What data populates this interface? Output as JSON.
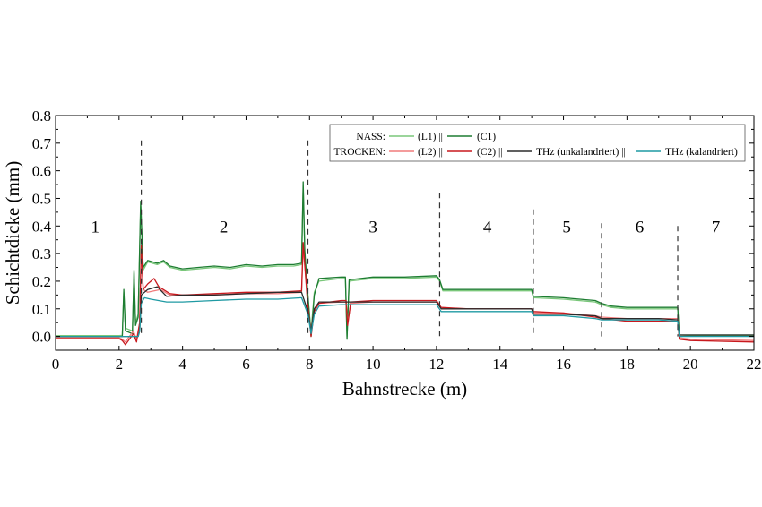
{
  "chart_data": {
    "type": "line",
    "xlabel": "Bahnstrecke (m)",
    "ylabel": "Schichtdicke (mm)",
    "xlim": [
      0,
      22
    ],
    "ylim": [
      -0.05,
      0.8
    ],
    "xticks": [
      0,
      2,
      4,
      6,
      8,
      10,
      12,
      14,
      16,
      18,
      20,
      22
    ],
    "yticks": [
      0.0,
      0.1,
      0.2,
      0.3,
      0.4,
      0.5,
      0.6,
      0.7,
      0.8
    ],
    "ytick_labels": [
      "0.0",
      "0.1",
      "0.2",
      "0.3",
      "0.4",
      "0.5",
      "0.6",
      "0.7",
      "0.8"
    ],
    "grid": false,
    "legend": {
      "placement": "top-right",
      "rows": [
        {
          "prefix": "NASS:",
          "entries": [
            {
              "series": "L1",
              "label": "(L1) ||"
            },
            {
              "series": "C1",
              "label": "(C1)"
            }
          ]
        },
        {
          "prefix": "TROCKEN:",
          "entries": [
            {
              "series": "L2",
              "label": "(L2) ||"
            },
            {
              "series": "C2",
              "label": "(C2) ||"
            },
            {
              "series": "THz_u",
              "label": "THz (unkalandriert) ||"
            },
            {
              "series": "THz_k",
              "label": "THz (kalandriert)"
            }
          ]
        }
      ]
    },
    "boundaries": [
      {
        "x": 2.7,
        "top": 0.71
      },
      {
        "x": 7.95,
        "top": 0.71
      },
      {
        "x": 12.1,
        "top": 0.52
      },
      {
        "x": 15.05,
        "top": 0.46
      },
      {
        "x": 17.2,
        "top": 0.41
      },
      {
        "x": 19.6,
        "top": 0.4
      }
    ],
    "regions": [
      {
        "label": "1",
        "x": 1.25,
        "y": 0.4
      },
      {
        "label": "2",
        "x": 5.3,
        "y": 0.4
      },
      {
        "label": "3",
        "x": 10.0,
        "y": 0.4
      },
      {
        "label": "4",
        "x": 13.6,
        "y": 0.4
      },
      {
        "label": "5",
        "x": 16.1,
        "y": 0.4
      },
      {
        "label": "6",
        "x": 18.4,
        "y": 0.4
      },
      {
        "label": "7",
        "x": 20.8,
        "y": 0.4
      }
    ],
    "series": [
      {
        "key": "L1",
        "color": "#7ac77a",
        "points": [
          [
            0,
            0.003
          ],
          [
            2.0,
            0.003
          ],
          [
            2.1,
            0.004
          ],
          [
            2.15,
            0.16
          ],
          [
            2.2,
            0.03
          ],
          [
            2.42,
            0.02
          ],
          [
            2.47,
            0.23
          ],
          [
            2.52,
            0.05
          ],
          [
            2.6,
            0.08
          ],
          [
            2.68,
            0.47
          ],
          [
            2.76,
            0.24
          ],
          [
            2.9,
            0.27
          ],
          [
            3.2,
            0.26
          ],
          [
            3.4,
            0.27
          ],
          [
            3.6,
            0.25
          ],
          [
            4.0,
            0.24
          ],
          [
            4.5,
            0.245
          ],
          [
            5.0,
            0.25
          ],
          [
            5.5,
            0.245
          ],
          [
            6.0,
            0.255
          ],
          [
            6.5,
            0.25
          ],
          [
            7.0,
            0.255
          ],
          [
            7.5,
            0.255
          ],
          [
            7.75,
            0.26
          ],
          [
            7.8,
            0.54
          ],
          [
            7.85,
            0.3
          ],
          [
            7.95,
            0.14
          ],
          [
            8.05,
            0.02
          ],
          [
            8.15,
            0.16
          ],
          [
            8.3,
            0.2
          ],
          [
            9.0,
            0.21
          ],
          [
            9.13,
            0.21
          ],
          [
            9.18,
            0.0
          ],
          [
            9.25,
            0.2
          ],
          [
            10.0,
            0.21
          ],
          [
            11.0,
            0.21
          ],
          [
            12.0,
            0.215
          ],
          [
            12.1,
            0.2
          ],
          [
            12.2,
            0.165
          ],
          [
            13.0,
            0.165
          ],
          [
            14.0,
            0.165
          ],
          [
            15.0,
            0.165
          ],
          [
            15.05,
            0.14
          ],
          [
            16.0,
            0.135
          ],
          [
            17.0,
            0.125
          ],
          [
            17.2,
            0.115
          ],
          [
            17.5,
            0.105
          ],
          [
            18.0,
            0.1
          ],
          [
            19.0,
            0.1
          ],
          [
            19.6,
            0.1
          ],
          [
            19.65,
            0.0
          ],
          [
            20.0,
            0.002
          ],
          [
            22.0,
            0.003
          ]
        ]
      },
      {
        "key": "C1",
        "color": "#1e7d32",
        "points": [
          [
            0,
            0.0
          ],
          [
            2.0,
            0.0
          ],
          [
            2.1,
            0.0
          ],
          [
            2.15,
            0.17
          ],
          [
            2.2,
            0.02
          ],
          [
            2.42,
            0.01
          ],
          [
            2.47,
            0.24
          ],
          [
            2.52,
            0.04
          ],
          [
            2.6,
            0.07
          ],
          [
            2.68,
            0.49
          ],
          [
            2.76,
            0.25
          ],
          [
            2.9,
            0.275
          ],
          [
            3.2,
            0.265
          ],
          [
            3.4,
            0.275
          ],
          [
            3.6,
            0.255
          ],
          [
            4.0,
            0.245
          ],
          [
            4.5,
            0.25
          ],
          [
            5.0,
            0.255
          ],
          [
            5.5,
            0.25
          ],
          [
            6.0,
            0.26
          ],
          [
            6.5,
            0.255
          ],
          [
            7.0,
            0.26
          ],
          [
            7.5,
            0.26
          ],
          [
            7.75,
            0.265
          ],
          [
            7.8,
            0.56
          ],
          [
            7.85,
            0.31
          ],
          [
            7.95,
            0.15
          ],
          [
            8.05,
            0.0
          ],
          [
            8.15,
            0.15
          ],
          [
            8.3,
            0.21
          ],
          [
            9.0,
            0.215
          ],
          [
            9.13,
            0.215
          ],
          [
            9.18,
            -0.01
          ],
          [
            9.25,
            0.205
          ],
          [
            10.0,
            0.215
          ],
          [
            11.0,
            0.215
          ],
          [
            12.0,
            0.22
          ],
          [
            12.1,
            0.205
          ],
          [
            12.2,
            0.17
          ],
          [
            13.0,
            0.17
          ],
          [
            14.0,
            0.17
          ],
          [
            15.0,
            0.17
          ],
          [
            15.05,
            0.145
          ],
          [
            16.0,
            0.14
          ],
          [
            17.0,
            0.13
          ],
          [
            17.2,
            0.12
          ],
          [
            17.5,
            0.11
          ],
          [
            18.0,
            0.105
          ],
          [
            19.0,
            0.105
          ],
          [
            19.6,
            0.105
          ],
          [
            19.65,
            0.005
          ],
          [
            20.0,
            0.005
          ],
          [
            22.0,
            0.005
          ]
        ]
      },
      {
        "key": "L2",
        "color": "#f07c7c",
        "points": [
          [
            0,
            -0.005
          ],
          [
            2.0,
            -0.005
          ],
          [
            2.1,
            -0.01
          ],
          [
            2.2,
            -0.02
          ],
          [
            2.45,
            0.02
          ],
          [
            2.55,
            -0.01
          ],
          [
            2.65,
            0.05
          ],
          [
            2.7,
            0.32
          ],
          [
            2.76,
            0.17
          ],
          [
            2.9,
            0.16
          ],
          [
            3.3,
            0.17
          ],
          [
            3.6,
            0.15
          ],
          [
            4.0,
            0.15
          ],
          [
            5.0,
            0.15
          ],
          [
            6.0,
            0.155
          ],
          [
            7.0,
            0.155
          ],
          [
            7.75,
            0.16
          ],
          [
            7.8,
            0.33
          ],
          [
            7.95,
            0.1
          ],
          [
            8.05,
            0.02
          ],
          [
            8.15,
            0.1
          ],
          [
            8.3,
            0.12
          ],
          [
            9.0,
            0.125
          ],
          [
            9.15,
            0.125
          ],
          [
            9.2,
            0.05
          ],
          [
            9.3,
            0.12
          ],
          [
            10.0,
            0.125
          ],
          [
            11.0,
            0.125
          ],
          [
            12.0,
            0.125
          ],
          [
            12.15,
            0.1
          ],
          [
            13.0,
            0.1
          ],
          [
            14.0,
            0.1
          ],
          [
            15.0,
            0.1
          ],
          [
            15.05,
            0.085
          ],
          [
            16.0,
            0.085
          ],
          [
            17.0,
            0.075
          ],
          [
            17.2,
            0.07
          ],
          [
            18.0,
            0.065
          ],
          [
            19.0,
            0.065
          ],
          [
            19.6,
            0.065
          ],
          [
            19.65,
            -0.005
          ],
          [
            20.0,
            -0.01
          ],
          [
            22.0,
            -0.015
          ]
        ]
      },
      {
        "key": "C2",
        "color": "#c8191e",
        "points": [
          [
            0,
            -0.008
          ],
          [
            2.0,
            -0.008
          ],
          [
            2.1,
            -0.015
          ],
          [
            2.2,
            -0.03
          ],
          [
            2.45,
            0.01
          ],
          [
            2.55,
            -0.02
          ],
          [
            2.65,
            0.05
          ],
          [
            2.7,
            0.33
          ],
          [
            2.76,
            0.17
          ],
          [
            2.9,
            0.19
          ],
          [
            3.1,
            0.21
          ],
          [
            3.25,
            0.18
          ],
          [
            3.6,
            0.155
          ],
          [
            4.0,
            0.15
          ],
          [
            5.0,
            0.155
          ],
          [
            6.0,
            0.16
          ],
          [
            7.0,
            0.16
          ],
          [
            7.75,
            0.165
          ],
          [
            7.8,
            0.34
          ],
          [
            7.95,
            0.11
          ],
          [
            8.05,
            0.0
          ],
          [
            8.15,
            0.09
          ],
          [
            8.3,
            0.12
          ],
          [
            9.0,
            0.13
          ],
          [
            9.15,
            0.13
          ],
          [
            9.2,
            0.04
          ],
          [
            9.3,
            0.125
          ],
          [
            10.0,
            0.13
          ],
          [
            11.0,
            0.13
          ],
          [
            12.0,
            0.13
          ],
          [
            12.15,
            0.105
          ],
          [
            13.0,
            0.1
          ],
          [
            14.0,
            0.1
          ],
          [
            15.0,
            0.1
          ],
          [
            15.05,
            0.09
          ],
          [
            16.0,
            0.085
          ],
          [
            17.0,
            0.07
          ],
          [
            17.2,
            0.065
          ],
          [
            18.0,
            0.055
          ],
          [
            19.0,
            0.055
          ],
          [
            19.6,
            0.055
          ],
          [
            19.65,
            -0.01
          ],
          [
            20.0,
            -0.015
          ],
          [
            22.0,
            -0.02
          ]
        ]
      },
      {
        "key": "THz_u",
        "color": "#2b2b2b",
        "points": [
          [
            0,
            0.0
          ],
          [
            2.0,
            0.0
          ],
          [
            2.6,
            0.0
          ],
          [
            2.65,
            0.02
          ],
          [
            2.7,
            0.15
          ],
          [
            2.8,
            0.16
          ],
          [
            2.9,
            0.17
          ],
          [
            3.2,
            0.18
          ],
          [
            3.5,
            0.145
          ],
          [
            4.0,
            0.15
          ],
          [
            5.0,
            0.15
          ],
          [
            6.0,
            0.155
          ],
          [
            7.0,
            0.16
          ],
          [
            7.75,
            0.16
          ],
          [
            7.95,
            0.09
          ],
          [
            8.05,
            0.02
          ],
          [
            8.15,
            0.1
          ],
          [
            8.3,
            0.125
          ],
          [
            9.0,
            0.125
          ],
          [
            10.0,
            0.125
          ],
          [
            11.0,
            0.125
          ],
          [
            12.0,
            0.125
          ],
          [
            12.15,
            0.1
          ],
          [
            13.0,
            0.1
          ],
          [
            14.0,
            0.1
          ],
          [
            15.0,
            0.1
          ],
          [
            15.05,
            0.08
          ],
          [
            16.0,
            0.08
          ],
          [
            17.0,
            0.075
          ],
          [
            17.2,
            0.065
          ],
          [
            18.0,
            0.065
          ],
          [
            19.0,
            0.065
          ],
          [
            19.6,
            0.06
          ],
          [
            19.65,
            0.005
          ],
          [
            20.0,
            0.005
          ],
          [
            22.0,
            0.005
          ]
        ]
      },
      {
        "key": "THz_k",
        "color": "#1f9aa3",
        "points": [
          [
            0,
            0.0
          ],
          [
            2.0,
            0.0
          ],
          [
            2.6,
            0.0
          ],
          [
            2.65,
            0.02
          ],
          [
            2.7,
            0.12
          ],
          [
            2.8,
            0.14
          ],
          [
            3.0,
            0.135
          ],
          [
            3.5,
            0.125
          ],
          [
            4.0,
            0.125
          ],
          [
            5.0,
            0.13
          ],
          [
            6.0,
            0.135
          ],
          [
            7.0,
            0.135
          ],
          [
            7.75,
            0.14
          ],
          [
            7.95,
            0.08
          ],
          [
            8.05,
            0.01
          ],
          [
            8.15,
            0.08
          ],
          [
            8.3,
            0.11
          ],
          [
            9.0,
            0.115
          ],
          [
            10.0,
            0.115
          ],
          [
            11.0,
            0.115
          ],
          [
            12.0,
            0.115
          ],
          [
            12.15,
            0.09
          ],
          [
            13.0,
            0.09
          ],
          [
            14.0,
            0.09
          ],
          [
            15.0,
            0.09
          ],
          [
            15.05,
            0.075
          ],
          [
            16.0,
            0.075
          ],
          [
            17.0,
            0.065
          ],
          [
            17.2,
            0.06
          ],
          [
            18.0,
            0.06
          ],
          [
            19.0,
            0.06
          ],
          [
            19.6,
            0.055
          ],
          [
            19.65,
            0.0
          ],
          [
            20.0,
            0.0
          ],
          [
            22.0,
            0.0
          ]
        ]
      }
    ]
  }
}
